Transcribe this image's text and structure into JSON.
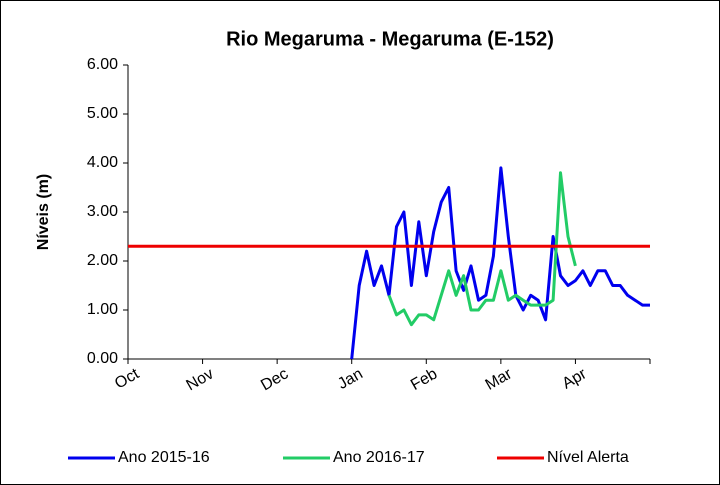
{
  "chart_data": {
    "type": "line",
    "title": "Rio Megaruma - Megaruma (E-152)",
    "y_label": "Níveis (m)",
    "categories": [
      "Oct",
      null,
      null,
      null,
      null,
      null,
      null,
      null,
      null,
      null,
      "Nov",
      null,
      null,
      null,
      null,
      null,
      null,
      null,
      null,
      null,
      "Dec",
      null,
      null,
      null,
      null,
      null,
      null,
      null,
      null,
      null,
      "Jan",
      null,
      null,
      null,
      null,
      null,
      null,
      null,
      null,
      null,
      "Feb",
      null,
      null,
      null,
      null,
      null,
      null,
      null,
      null,
      null,
      "Mar",
      null,
      null,
      null,
      null,
      null,
      null,
      null,
      null,
      null,
      "Apr",
      null,
      null,
      null,
      null,
      null,
      null,
      null,
      null,
      null,
      null
    ],
    "series": [
      {
        "name": "Ano 2015-16",
        "color": "#0000ee",
        "values": [
          null,
          null,
          null,
          null,
          null,
          null,
          null,
          null,
          null,
          null,
          null,
          null,
          null,
          null,
          null,
          null,
          null,
          null,
          null,
          null,
          null,
          null,
          null,
          null,
          null,
          null,
          null,
          null,
          null,
          null,
          0.0,
          1.5,
          2.2,
          1.5,
          1.9,
          1.3,
          2.7,
          3.0,
          1.5,
          2.8,
          1.7,
          2.6,
          3.2,
          3.5,
          1.8,
          1.4,
          1.9,
          1.2,
          1.3,
          2.1,
          3.9,
          2.5,
          1.3,
          1.0,
          1.3,
          1.2,
          0.8,
          2.5,
          1.7,
          1.5,
          1.6,
          1.8,
          1.5,
          1.8,
          1.8,
          1.5,
          1.5,
          1.3,
          1.2,
          1.1,
          1.1
        ]
      },
      {
        "name": "Ano 2016-17",
        "color": "#22cc66",
        "values": [
          null,
          null,
          null,
          null,
          null,
          null,
          null,
          null,
          null,
          null,
          null,
          null,
          null,
          null,
          null,
          null,
          null,
          null,
          null,
          null,
          null,
          null,
          null,
          null,
          null,
          null,
          null,
          null,
          null,
          null,
          null,
          null,
          null,
          null,
          null,
          1.3,
          0.9,
          1.0,
          0.7,
          0.9,
          0.9,
          0.8,
          1.3,
          1.8,
          1.3,
          1.7,
          1.0,
          1.0,
          1.2,
          1.2,
          1.8,
          1.2,
          1.3,
          1.2,
          1.1,
          1.1,
          1.1,
          1.2,
          3.8,
          2.5,
          1.9,
          null,
          null,
          null,
          null,
          null,
          null,
          null,
          null,
          null,
          null
        ]
      }
    ],
    "alert": {
      "name": "Nível Alerta",
      "color": "#ee0000",
      "value": 2.3
    },
    "ylim": [
      0,
      6
    ],
    "yticks": [
      {
        "value": 0,
        "label": "0.00"
      },
      {
        "value": 1,
        "label": "1.00"
      },
      {
        "value": 2,
        "label": "2.00"
      },
      {
        "value": 3,
        "label": "3.00"
      },
      {
        "value": 4,
        "label": "4.00"
      },
      {
        "value": 5,
        "label": "5.00"
      },
      {
        "value": 6,
        "label": "6.00"
      }
    ]
  }
}
